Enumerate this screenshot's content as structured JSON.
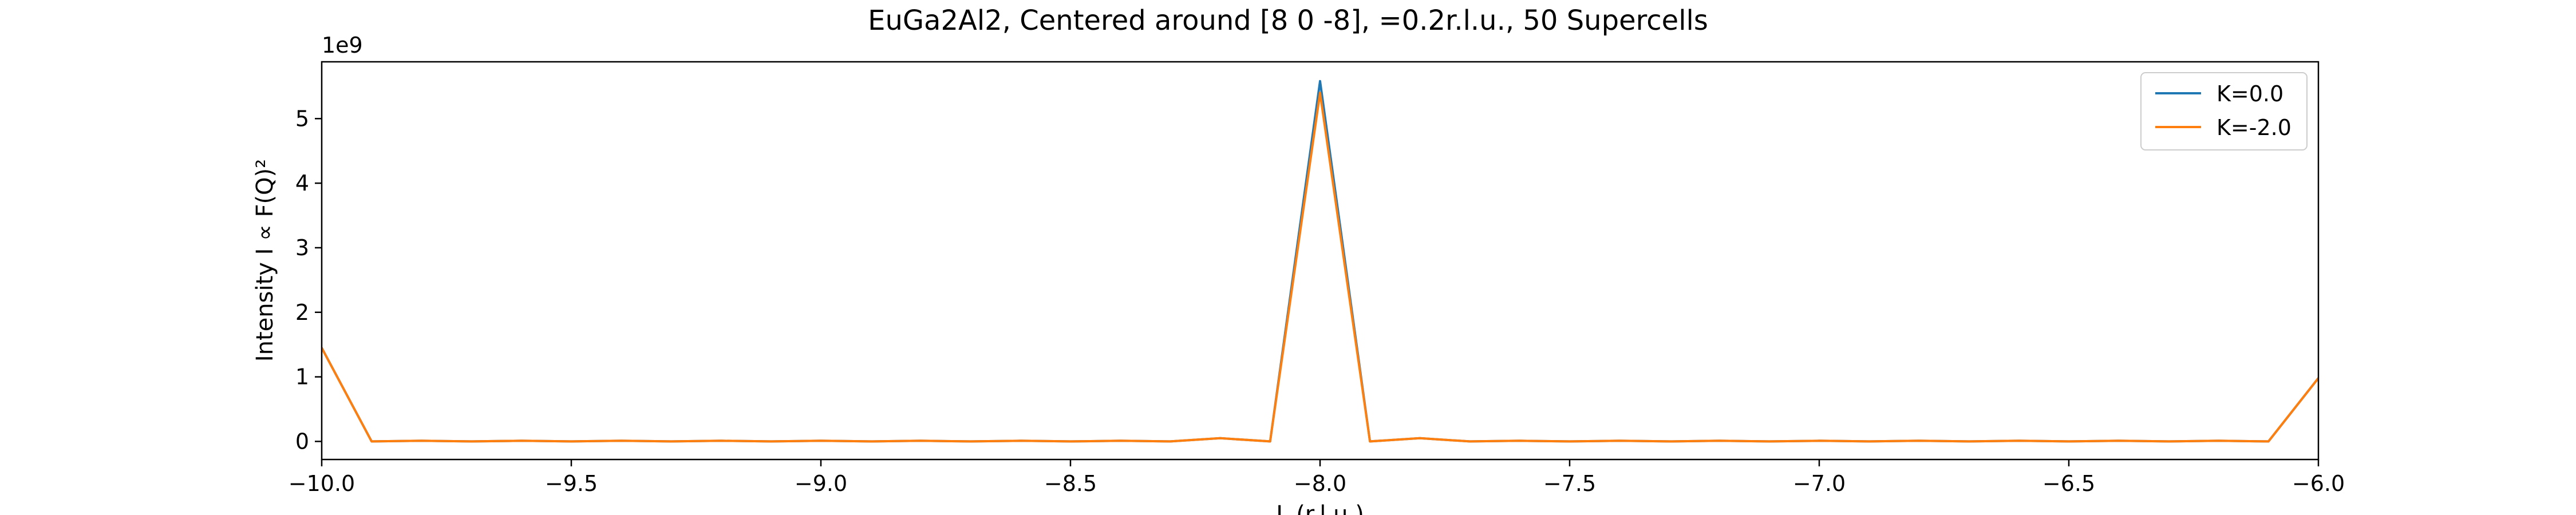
{
  "chart_data": {
    "type": "line",
    "title": "EuGa2Al2, Centered around [8 0 -8], =0.2r.l.u., 50 Supercells",
    "xlabel": "L (r.l.u.)",
    "ylabel": "Intensity I ∝ F(Q)²",
    "y_scale_label": "1e9",
    "xlim": [
      -10.0,
      -6.0
    ],
    "ylim": [
      -0.28,
      5.88
    ],
    "xticks": [
      -10.0,
      -9.5,
      -9.0,
      -8.5,
      -8.0,
      -7.5,
      -7.0,
      -6.5,
      -6.0
    ],
    "xtick_labels": [
      "−10.0",
      "−9.5",
      "−9.0",
      "−8.5",
      "−8.0",
      "−7.5",
      "−7.0",
      "−6.5",
      "−6.0"
    ],
    "yticks": [
      0,
      1,
      2,
      3,
      4,
      5
    ],
    "ytick_labels": [
      "0",
      "1",
      "2",
      "3",
      "4",
      "5"
    ],
    "grid": false,
    "legend_position": "upper right",
    "x": [
      -10.0,
      -9.9,
      -9.8,
      -9.7,
      -9.6,
      -9.5,
      -9.4,
      -9.3,
      -9.2,
      -9.1,
      -9.0,
      -8.9,
      -8.8,
      -8.7,
      -8.6,
      -8.5,
      -8.4,
      -8.3,
      -8.2,
      -8.1,
      -8.0,
      -7.9,
      -7.8,
      -7.7,
      -7.6,
      -7.5,
      -7.4,
      -7.3,
      -7.2,
      -7.1,
      -7.0,
      -6.9,
      -6.8,
      -6.7,
      -6.6,
      -6.5,
      -6.4,
      -6.3,
      -6.2,
      -6.1,
      -6.0
    ],
    "series": [
      {
        "name": "K=0.0",
        "color": "#1f77b4",
        "values": [
          1.45,
          0.0,
          0.01,
          0.0,
          0.01,
          0.0,
          0.01,
          0.0,
          0.01,
          0.0,
          0.01,
          0.0,
          0.01,
          0.0,
          0.01,
          0.0,
          0.01,
          0.0,
          0.05,
          0.0,
          5.58,
          0.0,
          0.05,
          0.0,
          0.01,
          0.0,
          0.01,
          0.0,
          0.01,
          0.0,
          0.01,
          0.0,
          0.01,
          0.0,
          0.01,
          0.0,
          0.01,
          0.0,
          0.01,
          0.0,
          0.98
        ]
      },
      {
        "name": "K=-2.0",
        "color": "#ff7f0e",
        "values": [
          1.45,
          0.0,
          0.01,
          0.0,
          0.01,
          0.0,
          0.01,
          0.0,
          0.01,
          0.0,
          0.01,
          0.0,
          0.01,
          0.0,
          0.01,
          0.0,
          0.01,
          0.0,
          0.05,
          0.0,
          5.4,
          0.0,
          0.05,
          0.0,
          0.01,
          0.0,
          0.01,
          0.0,
          0.01,
          0.0,
          0.01,
          0.0,
          0.01,
          0.0,
          0.01,
          0.0,
          0.01,
          0.0,
          0.01,
          0.0,
          0.98
        ]
      }
    ]
  }
}
